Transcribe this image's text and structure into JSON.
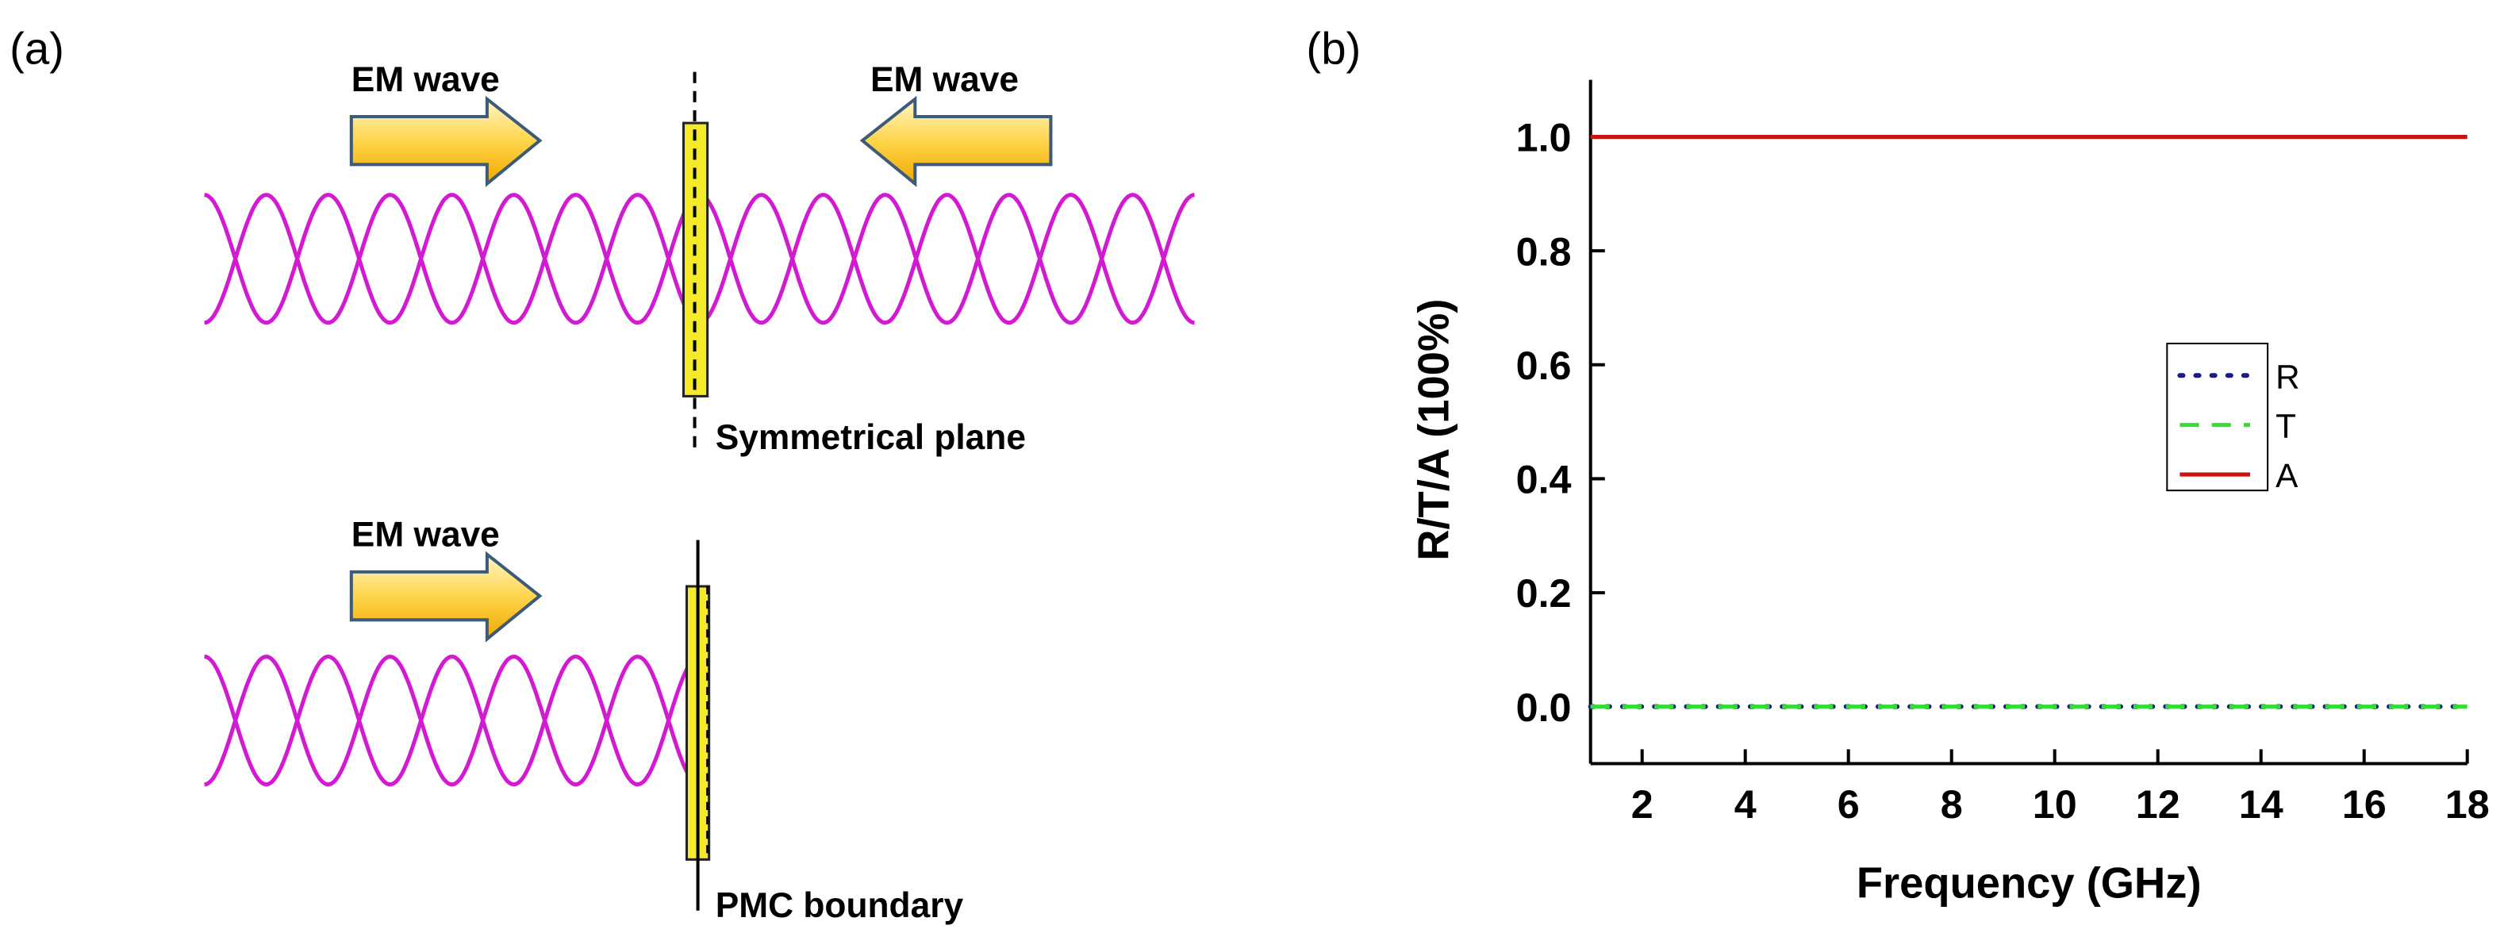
{
  "panel_a": {
    "label": "(a)",
    "top_left_wave": "EM wave",
    "top_right_wave": "EM wave",
    "top_plane": "Symmetrical plane",
    "bottom_wave": "EM wave",
    "bottom_plane": "PMC boundary"
  },
  "chart_data": {
    "type": "line",
    "panel_label": "(b)",
    "x_label": "Frequency (GHz)",
    "y_label": "R/T/A (100%)",
    "x": [
      1,
      18
    ],
    "series": [
      {
        "name": "R",
        "color": "#1a1a8c",
        "style": "dotted",
        "values": [
          0,
          0
        ]
      },
      {
        "name": "T",
        "color": "#33dd33",
        "style": "dashed",
        "values": [
          0,
          0
        ]
      },
      {
        "name": "A",
        "color": "#cc1111",
        "style": "solid",
        "values": [
          1,
          1
        ]
      }
    ],
    "xlim": [
      1,
      18
    ],
    "xticks": [
      2,
      4,
      6,
      8,
      10,
      12,
      14,
      16,
      18
    ],
    "ylim": [
      -0.1,
      1.1
    ],
    "yticks": [
      {
        "value": 0,
        "label": "0.0"
      },
      0.2,
      0.4,
      0.6,
      0.8,
      {
        "value": 1,
        "label": "1.0"
      }
    ],
    "legend": "right"
  }
}
